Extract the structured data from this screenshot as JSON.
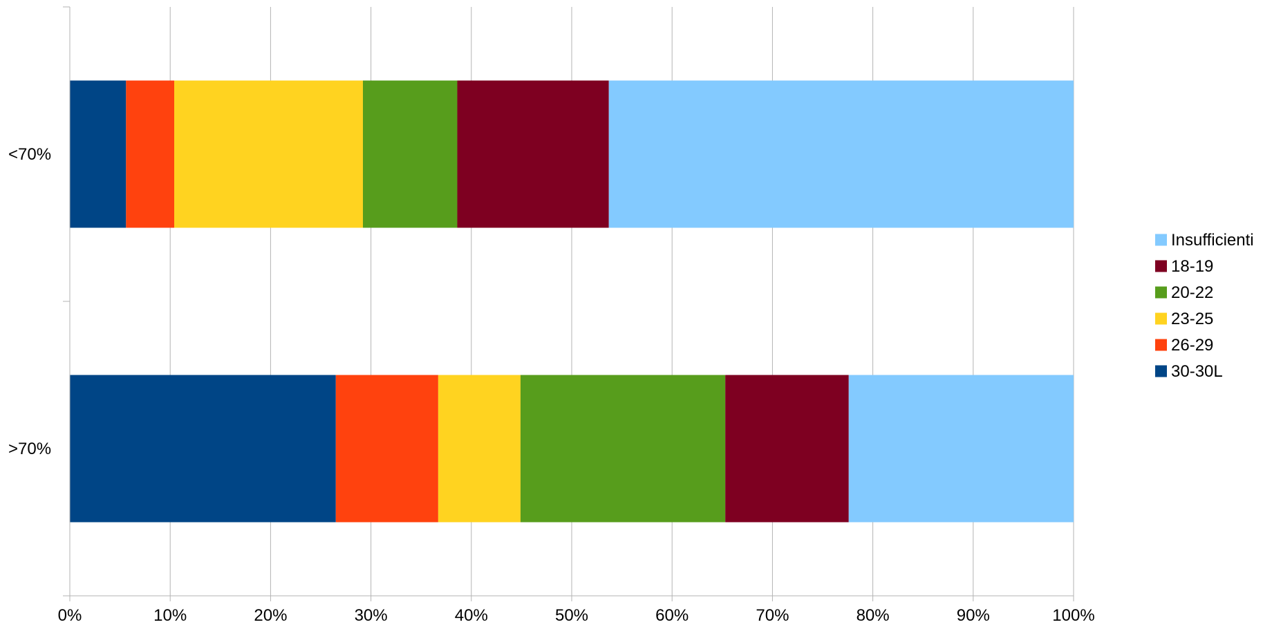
{
  "chart_data": {
    "type": "bar",
    "orientation": "horizontal",
    "stacked": "percent",
    "title": "",
    "xlabel": "",
    "ylabel": "",
    "xlim": [
      0,
      100
    ],
    "x_ticks": [
      "0%",
      "10%",
      "20%",
      "30%",
      "40%",
      "50%",
      "60%",
      "70%",
      "80%",
      "90%",
      "100%"
    ],
    "grid": "vertical",
    "legend_position": "right",
    "categories": [
      "<70%",
      ">70%"
    ],
    "series": [
      {
        "name": "30-30L",
        "color": "#004586",
        "values": [
          5.6,
          26.5
        ]
      },
      {
        "name": "26-29",
        "color": "#ff420e",
        "values": [
          4.8,
          10.2
        ]
      },
      {
        "name": "23-25",
        "color": "#ffd320",
        "values": [
          18.8,
          8.2
        ]
      },
      {
        "name": "20-22",
        "color": "#579d1c",
        "values": [
          9.4,
          20.4
        ]
      },
      {
        "name": "18-19",
        "color": "#7e0021",
        "values": [
          15.1,
          12.3
        ]
      },
      {
        "name": "Insufficienti",
        "color": "#83caff",
        "values": [
          46.3,
          22.4
        ]
      }
    ],
    "legend_order": [
      "Insufficienti",
      "18-19",
      "20-22",
      "23-25",
      "26-29",
      "30-30L"
    ]
  }
}
